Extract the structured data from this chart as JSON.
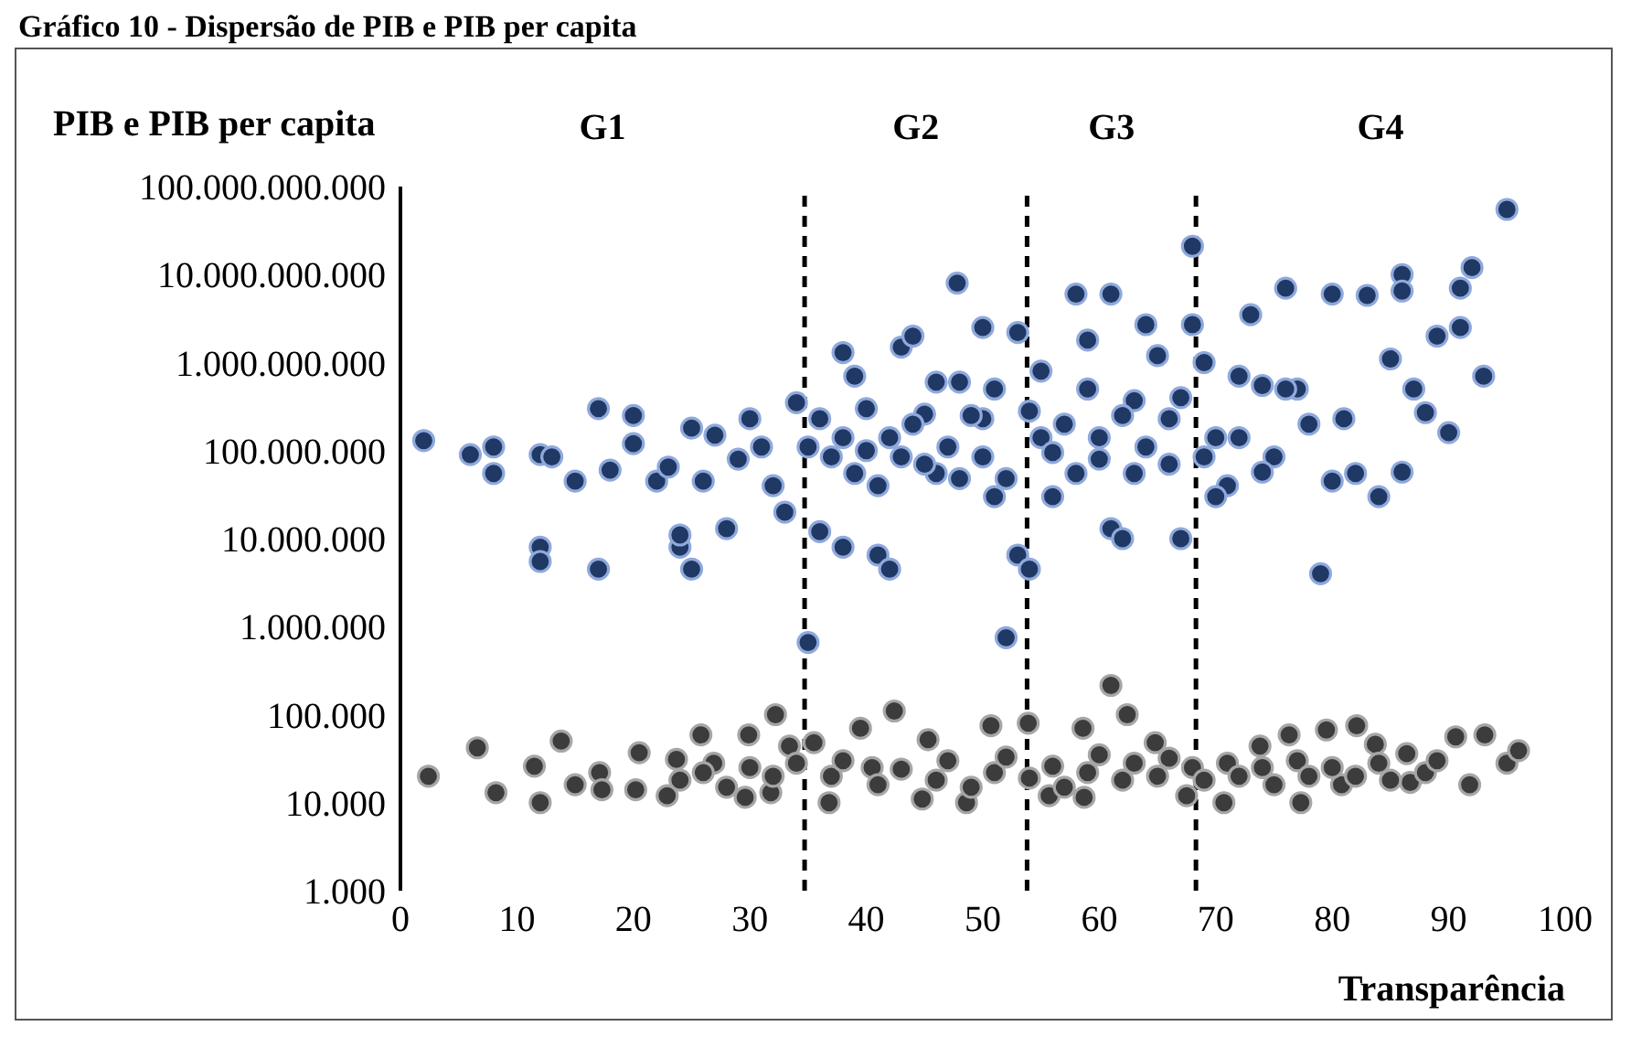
{
  "chart_data": {
    "type": "scatter",
    "title": "Gráfico 10 - Dispersão de PIB e PIB per capita",
    "ylabel": "PIB e PIB per capita",
    "xlabel": "Transparência",
    "annotations": [
      "G1",
      "G2",
      "G3",
      "G4"
    ],
    "xlim": [
      0,
      100
    ],
    "xticks": [
      0,
      10,
      20,
      30,
      40,
      50,
      60,
      70,
      80,
      90,
      100
    ],
    "ylim": [
      1000,
      100000000000
    ],
    "log": "y",
    "marker": "circle",
    "yticks": [
      {
        "value": 1000,
        "label": "1.000"
      },
      {
        "value": 10000,
        "label": "10.000"
      },
      {
        "value": 100000,
        "label": "100.000"
      },
      {
        "value": 1000000,
        "label": "1.000.000"
      },
      {
        "value": 10000000,
        "label": "10.000.000"
      },
      {
        "value": 100000000,
        "label": "100.000.000"
      },
      {
        "value": 1000000000,
        "label": "1.000.000.000"
      },
      {
        "value": 10000000000,
        "label": "10.000.000.000"
      },
      {
        "value": 100000000000,
        "label": "100.000.000.000"
      }
    ],
    "ref_lines": [
      {
        "axis": "x",
        "value": 34.7,
        "line_style": "dashed",
        "color": "#000000"
      },
      {
        "axis": "x",
        "value": 53.8,
        "line_style": "dashed",
        "color": "#000000"
      },
      {
        "axis": "x",
        "value": 68.3,
        "line_style": "dashed",
        "color": "#000000"
      }
    ],
    "series": [
      {
        "color": "#203864",
        "x": [
          2,
          6,
          8,
          8,
          12,
          12,
          12,
          13,
          15,
          17,
          17,
          18,
          20,
          20,
          22,
          23,
          24,
          24,
          25,
          25,
          26,
          27,
          28,
          29,
          30,
          31,
          32,
          33,
          34,
          35,
          35,
          36,
          38,
          38,
          39,
          40,
          41,
          42,
          47.8,
          43,
          44,
          45,
          46,
          48,
          50,
          50,
          51,
          52,
          53,
          53,
          54,
          55,
          56,
          58,
          61,
          59,
          60,
          61,
          62,
          63,
          64,
          65,
          66,
          67,
          68,
          68,
          69,
          70,
          71,
          72,
          73,
          74,
          75,
          76,
          77,
          78,
          79,
          80,
          80,
          82,
          83,
          84,
          85,
          86,
          86,
          86,
          87,
          88,
          89,
          90,
          91,
          91,
          92,
          93,
          95,
          36,
          37,
          38,
          39,
          40,
          41,
          42,
          43,
          44,
          45,
          46,
          47,
          48,
          49,
          50,
          51,
          52,
          54,
          55,
          56,
          57,
          58,
          59,
          60,
          62,
          63,
          64,
          66,
          67,
          69,
          70,
          72,
          74,
          76,
          81
        ],
        "values": [
          130000000,
          90000000,
          110000000,
          55000000,
          90000000,
          8000000,
          5500000,
          85000000,
          45000000,
          300000000,
          4500000,
          60000000,
          250000000,
          120000000,
          45000000,
          65000000,
          8000000,
          11000000,
          4500000,
          180000000,
          45000000,
          150000000,
          13000000,
          80000000,
          230000000,
          110000000,
          40000000,
          20000000,
          350000000,
          660000,
          110000000,
          12000000,
          1300000000,
          8000000,
          700000000,
          100000000,
          6500000,
          4500000,
          8000000000,
          1500000000,
          2000000000,
          260000000,
          55000000,
          600000000,
          2500000000,
          230000000,
          30000000,
          750000,
          6500000,
          2200000000,
          4500000,
          140000000,
          30000000,
          6000000000,
          6000000000,
          1800000000,
          80000000,
          13000000,
          10000000,
          370000000,
          2700000000,
          1200000000,
          230000000,
          10000000,
          21000000000,
          2700000000,
          1000000000,
          140000000,
          40000000,
          700000000,
          3500000000,
          550000000,
          85000000,
          7000000000,
          500000000,
          200000000,
          4000000,
          6000000000,
          45000000,
          55000000,
          5800000000,
          30000000,
          1100000000,
          10000000000,
          6500000000,
          57000000,
          500000000,
          270000000,
          2000000000,
          160000000,
          7000000000,
          2500000000,
          12000000000,
          700000000,
          55000000000,
          230000000,
          85000000,
          140000000,
          55000000,
          300000000,
          40000000,
          140000000,
          85000000,
          200000000,
          70000000,
          600000000,
          110000000,
          48000000,
          250000000,
          85000000,
          500000000,
          48000000,
          280000000,
          800000000,
          95000000,
          200000000,
          55000000,
          500000000,
          140000000,
          250000000,
          55000000,
          110000000,
          70000000,
          400000000,
          85000000,
          30000000,
          140000000,
          57000000,
          500000000,
          230000000
        ]
      },
      {
        "color": "#3c3c3c",
        "x": [
          2.4,
          6.6,
          8.2,
          11.5,
          12,
          13.8,
          15,
          17.1,
          17.3,
          20.5,
          20.2,
          23.7,
          22.9,
          25.8,
          26.9,
          29.9,
          29.6,
          32.2,
          31.8,
          33.4,
          35.5,
          36.8,
          39.5,
          42.4,
          40.5,
          44.8,
          45.3,
          50.7,
          48.6,
          53.9,
          55.7,
          58.6,
          61,
          62.4,
          58.7,
          64.8,
          67.5,
          70.7,
          73.8,
          76.3,
          77.3,
          79.5,
          82.1,
          80.8,
          83.7,
          86.4,
          86.7,
          90.6,
          91.8,
          93.1,
          95,
          96,
          37,
          38,
          41,
          43,
          46,
          47,
          49,
          51,
          52,
          54,
          56,
          57,
          59,
          60,
          62,
          63,
          65,
          66,
          68,
          69,
          71,
          72,
          74,
          75,
          77,
          78,
          80,
          82,
          84,
          85,
          88,
          89,
          24,
          26,
          28,
          30,
          32,
          34
        ],
        "values": [
          20000,
          42000,
          13000,
          26000,
          10000,
          50000,
          16000,
          22000,
          14000,
          37000,
          14000,
          31000,
          12000,
          59000,
          28000,
          59000,
          11500,
          100000,
          13000,
          44000,
          48000,
          10000,
          70000,
          110000,
          25000,
          11000,
          52000,
          75000,
          10000,
          80000,
          12000,
          70000,
          215000,
          100000,
          11500,
          48000,
          12000,
          10000,
          44000,
          59000,
          10000,
          67000,
          75000,
          16000,
          46000,
          36000,
          17000,
          56000,
          16000,
          59000,
          28000,
          39000,
          20000,
          30000,
          16000,
          24000,
          18000,
          30000,
          15000,
          22000,
          33000,
          19000,
          26000,
          15000,
          22000,
          35000,
          18000,
          28000,
          20000,
          32000,
          25000,
          18000,
          28000,
          20000,
          25000,
          16000,
          30000,
          20000,
          25000,
          20000,
          28000,
          18000,
          22000,
          30000,
          18000,
          22000,
          15000,
          25000,
          20000,
          28000
        ]
      }
    ]
  }
}
